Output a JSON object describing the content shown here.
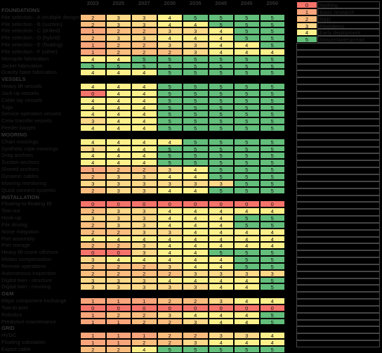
{
  "colors": [
    "#f4736b",
    "#f9a57b",
    "#fbbd7e",
    "#fdd888",
    "#fdf08b",
    "#63be7b"
  ],
  "headers": [
    "2023",
    "2025",
    "2027",
    "2030",
    "2035",
    "2040",
    "2045",
    "2050"
  ],
  "legend": [
    {
      "value": 0,
      "label": "Nothing"
    },
    {
      "value": 1,
      "label": "Basic research"
    },
    {
      "value": 2,
      "label": "R&D"
    },
    {
      "value": 3,
      "label": "Pilot/demo"
    },
    {
      "value": 4,
      "label": "Early deployment"
    },
    {
      "value": 5,
      "label": "Mature/widespread"
    }
  ],
  "sections": [
    {
      "title": "FOUNDATIONS",
      "rows": [
        {
          "label": "Pile selection - A (multiple designs)",
          "values": [
            2,
            3,
            3,
            4,
            5,
            5,
            5,
            5
          ]
        },
        {
          "label": "Pile selection - B (suction)",
          "values": [
            2,
            3,
            3,
            4,
            4,
            5,
            5,
            5
          ]
        },
        {
          "label": "Pile selection - C (drilled)",
          "values": [
            1,
            2,
            2,
            3,
            3,
            4,
            5,
            5
          ]
        },
        {
          "label": "Pile selection - D (hybrid)",
          "values": [
            2,
            3,
            3,
            4,
            4,
            4,
            5,
            5
          ]
        },
        {
          "label": "Pile selection - E (floating)",
          "values": [
            1,
            2,
            2,
            3,
            3,
            4,
            4,
            5
          ]
        },
        {
          "label": "Pile selection - F (other)",
          "values": [
            1,
            2,
            2,
            2,
            3,
            4,
            4,
            4
          ]
        },
        {
          "label": "Monopile fabrication",
          "values": [
            4,
            4,
            5,
            5,
            5,
            5,
            5,
            5
          ]
        },
        {
          "label": "Jacket fabrication",
          "values": [
            5,
            5,
            5,
            5,
            5,
            5,
            5,
            5
          ]
        },
        {
          "label": "Gravity base fabrication",
          "values": [
            4,
            4,
            4,
            5,
            5,
            5,
            5,
            5
          ]
        }
      ]
    },
    {
      "title": "VESSELS",
      "rows": [
        {
          "label": "Heavy lift vessels",
          "values": [
            4,
            4,
            4,
            5,
            5,
            5,
            5,
            5
          ]
        },
        {
          "label": "Jack-up vessels",
          "values": [
            0,
            4,
            4,
            5,
            5,
            5,
            5,
            5
          ]
        },
        {
          "label": "Cable lay vessels",
          "values": [
            4,
            4,
            4,
            5,
            5,
            5,
            5,
            5
          ]
        },
        {
          "label": "Tugs",
          "values": [
            4,
            4,
            4,
            5,
            5,
            5,
            5,
            5
          ]
        },
        {
          "label": "Service operation vessels",
          "values": [
            4,
            4,
            4,
            5,
            5,
            5,
            5,
            5
          ]
        },
        {
          "label": "Crew transfer vessels",
          "values": [
            3,
            4,
            4,
            5,
            5,
            5,
            5,
            5
          ]
        },
        {
          "label": "Feeder barges",
          "values": [
            4,
            4,
            4,
            5,
            5,
            5,
            5,
            5
          ]
        }
      ]
    },
    {
      "title": "MOORING",
      "rows": [
        {
          "label": "Chain moorings",
          "values": [
            4,
            4,
            4,
            4,
            5,
            5,
            5,
            5
          ]
        },
        {
          "label": "Synthetic rope moorings",
          "values": [
            3,
            4,
            4,
            5,
            5,
            5,
            5,
            5
          ]
        },
        {
          "label": "Drag anchors",
          "values": [
            4,
            4,
            4,
            5,
            5,
            5,
            5,
            5
          ]
        },
        {
          "label": "Suction anchors",
          "values": [
            4,
            4,
            4,
            5,
            5,
            5,
            5,
            5
          ]
        },
        {
          "label": "Shared anchors",
          "values": [
            1,
            2,
            2,
            3,
            4,
            5,
            5,
            5
          ]
        },
        {
          "label": "Dynamic cables",
          "values": [
            2,
            3,
            3,
            4,
            4,
            5,
            5,
            5
          ]
        },
        {
          "label": "Mooring monitoring",
          "values": [
            3,
            3,
            3,
            3,
            3,
            3,
            5,
            5
          ]
        },
        {
          "label": "Quick connect systems",
          "values": [
            2,
            3,
            3,
            4,
            4,
            5,
            5,
            5
          ]
        }
      ]
    },
    {
      "title": "INSTALLATION",
      "rows": [
        {
          "label": "Floating-to-floating lift",
          "values": [
            0,
            0,
            0,
            0,
            0,
            0,
            0,
            0
          ]
        },
        {
          "label": "Tow-out",
          "values": [
            2,
            3,
            3,
            4,
            4,
            4,
            4,
            4
          ]
        },
        {
          "label": "Hook-up",
          "values": [
            3,
            3,
            3,
            4,
            4,
            4,
            5,
            5
          ]
        },
        {
          "label": "Pile driving",
          "values": [
            2,
            3,
            3,
            4,
            4,
            4,
            5,
            5
          ]
        },
        {
          "label": "Noise mitigation",
          "values": [
            2,
            2,
            3,
            3,
            4,
            4,
            4,
            4
          ]
        },
        {
          "label": "Port assembly",
          "values": [
            4,
            4,
            4,
            4,
            4,
            4,
            4,
            4
          ]
        },
        {
          "label": "Port storage",
          "values": [
            2,
            2,
            3,
            4,
            4,
            4,
            4,
            4
          ]
        },
        {
          "label": "Heavy lift crane offshore",
          "values": [
            0,
            0,
            3,
            4,
            4,
            5,
            5,
            5
          ]
        },
        {
          "label": "Motion compensation",
          "values": [
            3,
            4,
            4,
            4,
            4,
            4,
            5,
            5
          ]
        },
        {
          "label": "Remote operations",
          "values": [
            2,
            2,
            2,
            3,
            4,
            4,
            5,
            5
          ]
        },
        {
          "label": "Autonomous inspection",
          "values": [
            2,
            2,
            2,
            2,
            3,
            3,
            3,
            3
          ]
        },
        {
          "label": "Digital twin - structure",
          "values": [
            3,
            3,
            3,
            4,
            4,
            4,
            4,
            5
          ]
        },
        {
          "label": "Digital twin - mooring",
          "values": [
            3,
            3,
            3,
            3,
            3,
            4,
            4,
            5
          ]
        }
      ]
    },
    {
      "title": "O&M",
      "rows": [
        {
          "label": "Major component exchange",
          "values": [
            1,
            1,
            1,
            2,
            2,
            3,
            4,
            4
          ]
        },
        {
          "label": "Tow-to-port",
          "values": [
            0,
            0,
            0,
            0,
            0,
            0,
            0,
            0
          ]
        },
        {
          "label": "Robotics",
          "values": [
            1,
            2,
            2,
            3,
            4,
            4,
            4,
            5
          ]
        },
        {
          "label": "Predictive maintenance",
          "values": [
            1,
            1,
            2,
            2,
            3,
            4,
            4,
            5
          ]
        }
      ]
    },
    {
      "title": "GRID",
      "rows": [
        {
          "label": "HVDC",
          "values": [
            1,
            1,
            1,
            2,
            2,
            3,
            3,
            4
          ]
        },
        {
          "label": "Floating substation",
          "values": [
            1,
            1,
            2,
            2,
            3,
            4,
            4,
            4
          ]
        },
        {
          "label": "Export cable",
          "values": [
            2,
            2,
            4,
            5,
            5,
            5,
            5,
            5
          ]
        }
      ]
    }
  ]
}
